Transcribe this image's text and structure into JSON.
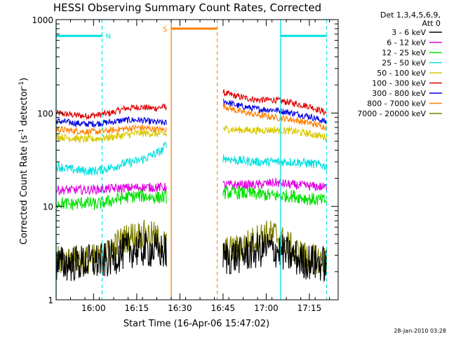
{
  "page": {
    "stamp": "28-Jan-2010 03:28"
  },
  "chart_data": {
    "type": "line",
    "title": "HESSI Observing Summary Count Rates, Corrected",
    "xlabel": "Start Time (16-Apr-06 15:47:02)",
    "ylabel": "Corrected Count Rate (s⁻¹ detector⁻¹)",
    "ylabel_parts": {
      "main": "Corrected Count Rate (s",
      "sup1": "-1",
      "mid": " detector",
      "sup2": "-1",
      "end": ")"
    },
    "x_unit": "minutes since 15:47:02",
    "xlim": [
      0,
      98
    ],
    "ylim": [
      1,
      1000
    ],
    "y_scale": "log",
    "x_ticks": [
      {
        "x": 13,
        "label": "16:00"
      },
      {
        "x": 28,
        "label": "16:15"
      },
      {
        "x": 43,
        "label": "16:30"
      },
      {
        "x": 58,
        "label": "16:45"
      },
      {
        "x": 73,
        "label": "17:00"
      },
      {
        "x": 88,
        "label": "17:15"
      }
    ],
    "y_ticks": [
      {
        "y": 1,
        "label": "1"
      },
      {
        "y": 10,
        "label": "10"
      },
      {
        "y": 100,
        "label": "100"
      },
      {
        "y": 1000,
        "label": "1000"
      }
    ],
    "legend": {
      "placement": "right",
      "header": [
        "Det 1,3,4,5,6,9,",
        "Att 0"
      ],
      "entries": [
        {
          "name": "3 - 6 keV",
          "color": "#000000"
        },
        {
          "name": "6 - 12 keV",
          "color": "#e000e0"
        },
        {
          "name": "12 - 25 keV",
          "color": "#00e000"
        },
        {
          "name": "25 - 50 keV",
          "color": "#00e0e0"
        },
        {
          "name": "50 - 100 keV",
          "color": "#d8c800"
        },
        {
          "name": "100 - 300 keV",
          "color": "#e00000"
        },
        {
          "name": "300 - 800 keV",
          "color": "#0000e0"
        },
        {
          "name": "800 - 7000 keV",
          "color": "#ff8000"
        },
        {
          "name": "7000 - 20000 keV",
          "color": "#808000"
        }
      ]
    },
    "annotations": [
      {
        "label": "N",
        "x_start": 0,
        "x_end": 16,
        "y": 670,
        "color": "#00e0e0",
        "dashed_boundary_at": 16
      },
      {
        "label": "S",
        "x_start": 40,
        "x_end": 56,
        "y": 800,
        "color": "#ff8000",
        "dashed_boundary_at": 56
      },
      {
        "label": "",
        "x_start": 78,
        "x_end": 94,
        "y": 670,
        "color": "#00e0e0",
        "dashed_boundary_at": 94
      }
    ],
    "segments": [
      [
        0,
        38.5
      ],
      [
        58,
        94
      ]
    ],
    "series": [
      {
        "name": "100 - 300 keV",
        "color": "#e00000",
        "noise": 0.035,
        "points": [
          [
            0,
            100
          ],
          [
            5,
            96
          ],
          [
            10,
            93
          ],
          [
            14,
            95
          ],
          [
            19,
            100
          ],
          [
            24,
            112
          ],
          [
            29,
            116
          ],
          [
            34,
            112
          ],
          [
            38.5,
            118
          ],
          [
            58,
            165
          ],
          [
            63,
            150
          ],
          [
            70,
            138
          ],
          [
            76,
            138
          ],
          [
            82,
            128
          ],
          [
            88,
            118
          ],
          [
            94,
            100
          ]
        ]
      },
      {
        "name": "300 - 800 keV",
        "color": "#0000e0",
        "noise": 0.035,
        "points": [
          [
            0,
            82
          ],
          [
            5,
            79
          ],
          [
            10,
            76
          ],
          [
            14,
            77
          ],
          [
            19,
            80
          ],
          [
            24,
            84
          ],
          [
            29,
            84
          ],
          [
            34,
            80
          ],
          [
            38.5,
            78
          ],
          [
            58,
            135
          ],
          [
            63,
            120
          ],
          [
            70,
            110
          ],
          [
            76,
            108
          ],
          [
            82,
            100
          ],
          [
            88,
            92
          ],
          [
            94,
            80
          ]
        ]
      },
      {
        "name": "800 - 7000 keV",
        "color": "#ff8000",
        "noise": 0.035,
        "points": [
          [
            0,
            67
          ],
          [
            5,
            65
          ],
          [
            10,
            63
          ],
          [
            14,
            63
          ],
          [
            19,
            65
          ],
          [
            24,
            68
          ],
          [
            29,
            70
          ],
          [
            34,
            67
          ],
          [
            38.5,
            66
          ],
          [
            58,
            120
          ],
          [
            63,
            105
          ],
          [
            70,
            95
          ],
          [
            76,
            90
          ],
          [
            82,
            85
          ],
          [
            88,
            78
          ],
          [
            94,
            70
          ]
        ]
      },
      {
        "name": "50 - 100 keV",
        "color": "#d8c800",
        "noise": 0.04,
        "points": [
          [
            0,
            56
          ],
          [
            5,
            54
          ],
          [
            10,
            52
          ],
          [
            14,
            53
          ],
          [
            19,
            55
          ],
          [
            24,
            58
          ],
          [
            29,
            61
          ],
          [
            34,
            60
          ],
          [
            38.5,
            59
          ],
          [
            58,
            68
          ],
          [
            63,
            66
          ],
          [
            70,
            65
          ],
          [
            76,
            66
          ],
          [
            82,
            64
          ],
          [
            88,
            60
          ],
          [
            94,
            55
          ]
        ]
      },
      {
        "name": "25 - 50 keV",
        "color": "#00e0e0",
        "noise": 0.05,
        "points": [
          [
            0,
            27
          ],
          [
            5,
            25
          ],
          [
            10,
            24
          ],
          [
            14,
            24
          ],
          [
            19,
            26
          ],
          [
            24,
            29
          ],
          [
            29,
            31
          ],
          [
            34,
            36
          ],
          [
            37,
            40
          ],
          [
            38.5,
            48
          ],
          [
            58,
            33
          ],
          [
            63,
            31
          ],
          [
            70,
            30
          ],
          [
            76,
            30
          ],
          [
            82,
            30
          ],
          [
            88,
            29
          ],
          [
            94,
            27
          ]
        ]
      },
      {
        "name": "6 - 12 keV",
        "color": "#e000e0",
        "noise": 0.05,
        "points": [
          [
            0,
            15
          ],
          [
            10,
            15
          ],
          [
            19,
            15.5
          ],
          [
            29,
            16
          ],
          [
            38.5,
            16
          ],
          [
            58,
            17
          ],
          [
            70,
            17
          ],
          [
            76,
            18
          ],
          [
            82,
            17
          ],
          [
            94,
            16
          ]
        ]
      },
      {
        "name": "12 - 25 keV",
        "color": "#00e000",
        "noise": 0.07,
        "points": [
          [
            0,
            11
          ],
          [
            5,
            10.5
          ],
          [
            10,
            11
          ],
          [
            14,
            10.5
          ],
          [
            19,
            11.5
          ],
          [
            24,
            12.5
          ],
          [
            29,
            13
          ],
          [
            34,
            12.5
          ],
          [
            38.5,
            12.5
          ],
          [
            58,
            14
          ],
          [
            63,
            14
          ],
          [
            70,
            13.5
          ],
          [
            76,
            13
          ],
          [
            82,
            13
          ],
          [
            88,
            12
          ],
          [
            94,
            11.5
          ]
        ]
      },
      {
        "name": "7000 - 20000 keV",
        "color": "#808000",
        "noise": 0.16,
        "points": [
          [
            0,
            2.6
          ],
          [
            10,
            2.7
          ],
          [
            16,
            2.8
          ],
          [
            19,
            3.4
          ],
          [
            22,
            4.2
          ],
          [
            26,
            4.8
          ],
          [
            30,
            5
          ],
          [
            34,
            4.8
          ],
          [
            38.5,
            3.8
          ],
          [
            58,
            3.3
          ],
          [
            63,
            3.5
          ],
          [
            68,
            4.2
          ],
          [
            72,
            5
          ],
          [
            76,
            5
          ],
          [
            80,
            4
          ],
          [
            84,
            3.2
          ],
          [
            88,
            2.8
          ],
          [
            94,
            2.6
          ]
        ]
      },
      {
        "name": "3 - 6 keV",
        "color": "#000000",
        "noise": 0.2,
        "points": [
          [
            0,
            2.4
          ],
          [
            10,
            2.5
          ],
          [
            17,
            2.6
          ],
          [
            21,
            3
          ],
          [
            25,
            3.4
          ],
          [
            30,
            3.5
          ],
          [
            34,
            3.4
          ],
          [
            38.5,
            3.2
          ],
          [
            58,
            2.8
          ],
          [
            64,
            3
          ],
          [
            69,
            3.3
          ],
          [
            73,
            3.6
          ],
          [
            77,
            3.4
          ],
          [
            81,
            3
          ],
          [
            86,
            2.6
          ],
          [
            94,
            2.4
          ]
        ]
      }
    ]
  }
}
